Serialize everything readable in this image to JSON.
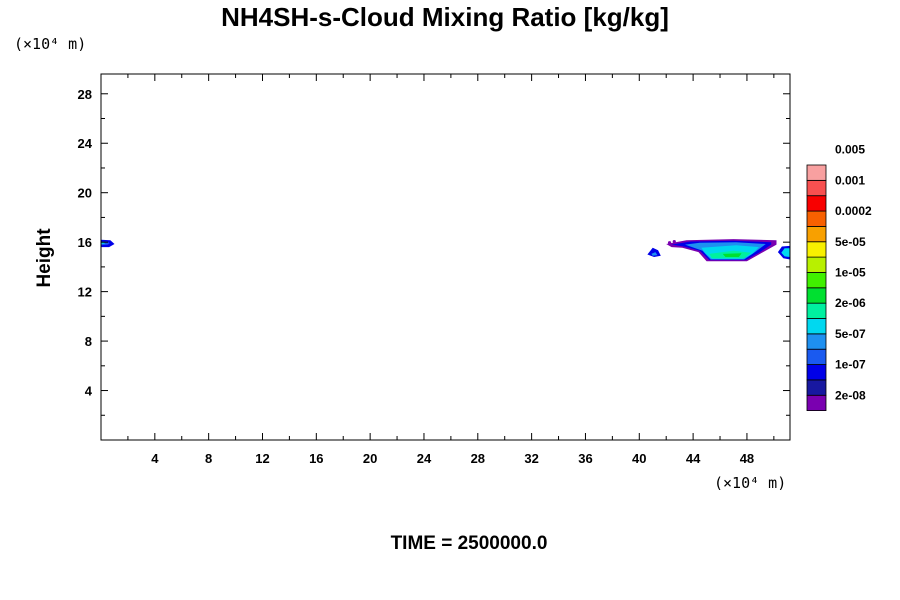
{
  "chart_data": {
    "type": "contour",
    "title": "NH4SH-s-Cloud Mixing Ratio [kg/kg]",
    "ylabel": "Height",
    "x_unit": "(×10⁴ m)",
    "y_unit": "(×10⁴ m)",
    "xlim": [
      0,
      51.2
    ],
    "ylim": [
      0,
      29.6
    ],
    "x_ticks": [
      4,
      8,
      12,
      16,
      20,
      24,
      28,
      32,
      36,
      40,
      44,
      48
    ],
    "y_ticks": [
      4,
      8,
      12,
      16,
      20,
      24,
      28
    ],
    "time_label": "TIME = 2500000.0",
    "colorbar": {
      "colors": [
        "#7a00b0",
        "#1818a0",
        "#0000e8",
        "#1a5af0",
        "#1e90f0",
        "#00d8f0",
        "#00f0a0",
        "#00e030",
        "#40f000",
        "#b8f000",
        "#f8f000",
        "#f8a000",
        "#f86000",
        "#f80000",
        "#f85050",
        "#f8a0a0"
      ],
      "labels": [
        "2e-08",
        "1e-07",
        "5e-07",
        "2e-06",
        "1e-05",
        "5e-05",
        "0.0002",
        "0.001",
        "0.005"
      ]
    },
    "features": [
      {
        "name": "left-edge-cloud",
        "x": [
          0,
          1.0
        ],
        "y": [
          15.5,
          16.2
        ],
        "levels": [
          "2e-08",
          "1e-07",
          "5e-07"
        ]
      },
      {
        "name": "right-cloud-band",
        "x": [
          42,
          50.2
        ],
        "y": [
          14.5,
          16.2
        ],
        "levels": [
          "2e-08",
          "1e-07",
          "5e-07",
          "2e-06",
          "1e-05"
        ]
      },
      {
        "name": "small-blob-41",
        "x": [
          40.6,
          41.6
        ],
        "y": [
          14.8,
          15.6
        ],
        "levels": [
          "1e-07",
          "5e-07"
        ]
      },
      {
        "name": "right-edge-blob",
        "x": [
          50.3,
          51.2
        ],
        "y": [
          14.6,
          15.7
        ],
        "levels": [
          "1e-07",
          "5e-07"
        ]
      }
    ]
  }
}
